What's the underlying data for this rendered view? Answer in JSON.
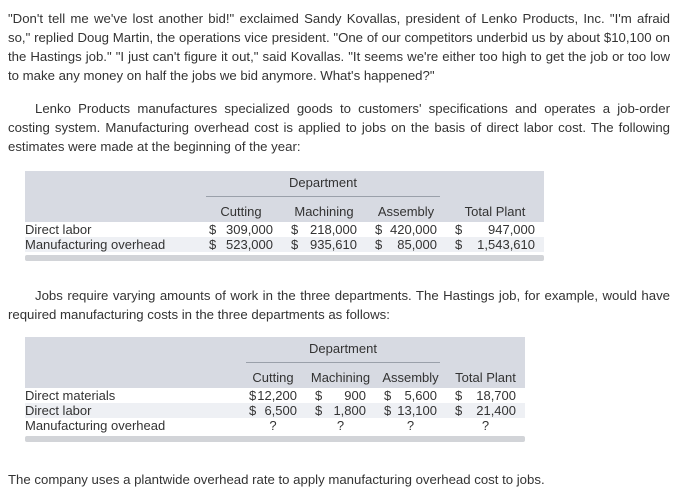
{
  "colors": {
    "page_bg": "#ffffff",
    "text": "#333333",
    "table_header_bg": "#d7dae2",
    "table_alt_row_bg": "#eef0f4",
    "table_bottom_bar": "#d2d4d8",
    "header_underline": "#9aa0aa"
  },
  "paragraphs": {
    "p1": "\"Don't tell me we've lost another bid!\" exclaimed Sandy Kovallas, president of Lenko Products, Inc. \"I'm afraid so,\" replied Doug Martin, the operations vice president. \"One of our competitors underbid us by about $10,100 on the Hastings job.\" \"I just can't figure it out,\" said Kovallas. \"It seems we're either too high to get the job or too low to make any money on half the jobs we bid anymore. What's happened?\"",
    "p2": "Lenko Products manufactures specialized goods to customers' specifications and operates a job-order costing system. Manufacturing overhead cost is applied to jobs on the basis of direct labor cost. The following estimates were made at the beginning of the year:",
    "p3": "Jobs require varying amounts of work in the three departments. The Hastings job, for example, would have required manufacturing costs in the three departments as follows:",
    "p4": "The company uses a plantwide overhead rate to apply manufacturing overhead cost to jobs."
  },
  "estimates_table": {
    "group_header": "Department",
    "columns": [
      "Cutting",
      "Machining",
      "Assembly",
      "Total Plant"
    ],
    "rows": [
      {
        "label": "Direct labor",
        "cells": [
          {
            "d": "$",
            "v": "309,000"
          },
          {
            "d": "$",
            "v": "218,000"
          },
          {
            "d": "$",
            "v": "420,000"
          },
          {
            "d": "$",
            "v": "947,000"
          }
        ]
      },
      {
        "label": "Manufacturing overhead",
        "cells": [
          {
            "d": "$",
            "v": "523,000"
          },
          {
            "d": "$",
            "v": "935,610"
          },
          {
            "d": "$",
            "v": "85,000"
          },
          {
            "d": "$",
            "v": "1,543,610"
          }
        ]
      }
    ]
  },
  "hastings_table": {
    "group_header": "Department",
    "columns": [
      "Cutting",
      "Machining",
      "Assembly",
      "Total Plant"
    ],
    "rows": [
      {
        "label": "Direct materials",
        "cells": [
          {
            "d": "$",
            "v": "12,200"
          },
          {
            "d": "$",
            "v": "900"
          },
          {
            "d": "$",
            "v": "5,600"
          },
          {
            "d": "$",
            "v": "18,700"
          }
        ]
      },
      {
        "label": "Direct labor",
        "cells": [
          {
            "d": "$",
            "v": "6,500"
          },
          {
            "d": "$",
            "v": "1,800"
          },
          {
            "d": "$",
            "v": "13,100"
          },
          {
            "d": "$",
            "v": "21,400"
          }
        ]
      },
      {
        "label": "Manufacturing overhead",
        "cells": [
          {
            "v": "?"
          },
          {
            "v": "?"
          },
          {
            "v": "?"
          },
          {
            "v": "?"
          }
        ]
      }
    ]
  }
}
